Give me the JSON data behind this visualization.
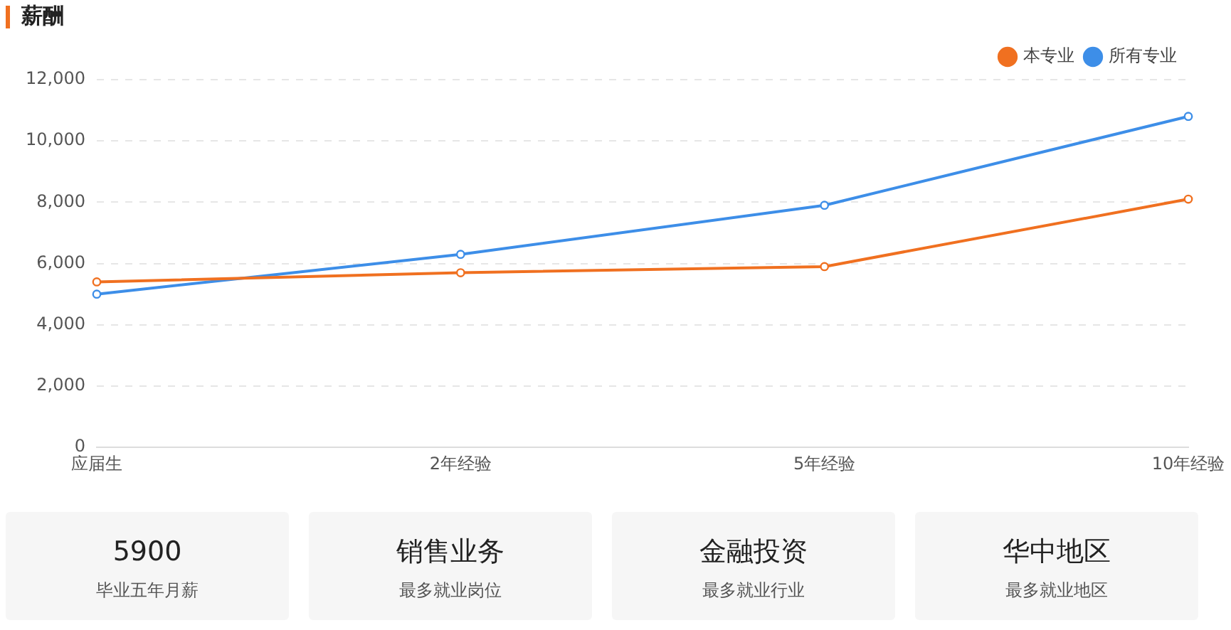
{
  "chart_data": [
    {
      "type": "line",
      "title": "薪酬",
      "categories": [
        "应届生",
        "2年经验",
        "5年经验",
        "10年经验"
      ],
      "series": [
        {
          "name": "本专业",
          "color": "#f07020",
          "values": [
            5400,
            5700,
            5900,
            8100
          ]
        },
        {
          "name": "所有专业",
          "color": "#3d8ee8",
          "values": [
            5000,
            6300,
            7900,
            10800
          ]
        }
      ],
      "ylim": [
        0,
        12000
      ],
      "yticks": [
        {
          "value": 0,
          "label": "0"
        },
        {
          "value": 2000,
          "label": "2,000"
        },
        {
          "value": 4000,
          "label": "4,000"
        },
        {
          "value": 6000,
          "label": "6,000"
        },
        {
          "value": 8000,
          "label": "8,000"
        },
        {
          "value": 10000,
          "label": "10,000"
        },
        {
          "value": 12000,
          "label": "12,000"
        }
      ],
      "grid": "y",
      "legend": "top right",
      "marker": "circle",
      "line_style": "solid"
    },
    {
      "type": "other",
      "annotations": [
        "5900",
        "毕业五年月薪",
        "销售业务",
        "最多就业岗位",
        "金融投资",
        "最多就业行业",
        "华中地区",
        "最多就业地区"
      ]
    }
  ]
}
